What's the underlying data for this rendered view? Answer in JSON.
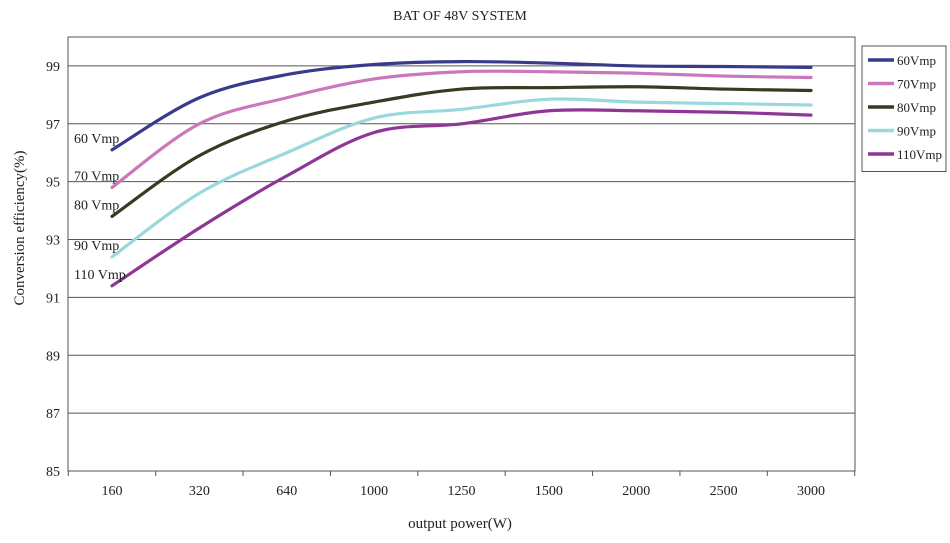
{
  "chart_data": {
    "type": "line",
    "title": "BAT OF 48V SYSTEM",
    "xlabel": "output power(W)",
    "ylabel": "Conversion efficiency(%)",
    "categories": [
      "160",
      "320",
      "640",
      "1000",
      "1250",
      "1500",
      "2000",
      "2500",
      "3000"
    ],
    "ylim": [
      85,
      100
    ],
    "yticks": [
      "85",
      "87",
      "89",
      "91",
      "93",
      "95",
      "97",
      "99"
    ],
    "grid": "horizontal",
    "legend_position": "right",
    "series": [
      {
        "name": "60Vmp",
        "color": "#3a3a8c",
        "annotation": "60  Vmp",
        "values": [
          96.1,
          97.9,
          98.7,
          99.05,
          99.15,
          99.1,
          99.0,
          98.98,
          98.95
        ]
      },
      {
        "name": "70Vmp",
        "color": "#cc77bb",
        "annotation": "70  Vmp",
        "values": [
          94.8,
          97.0,
          97.9,
          98.55,
          98.8,
          98.8,
          98.75,
          98.65,
          98.6
        ]
      },
      {
        "name": "80Vmp",
        "color": "#3a3a22",
        "annotation": "80  Vmp",
        "values": [
          93.8,
          95.9,
          97.1,
          97.75,
          98.2,
          98.25,
          98.28,
          98.2,
          98.15
        ]
      },
      {
        "name": "90Vmp",
        "color": "#99d8dc",
        "annotation": "90  Vmp",
        "values": [
          92.4,
          94.6,
          96.0,
          97.2,
          97.5,
          97.85,
          97.75,
          97.7,
          97.65
        ]
      },
      {
        "name": "110Vmp",
        "color": "#8e3596",
        "annotation": "110  Vmp",
        "values": [
          91.4,
          93.4,
          95.2,
          96.7,
          97.0,
          97.45,
          97.45,
          97.4,
          97.3
        ]
      }
    ]
  }
}
